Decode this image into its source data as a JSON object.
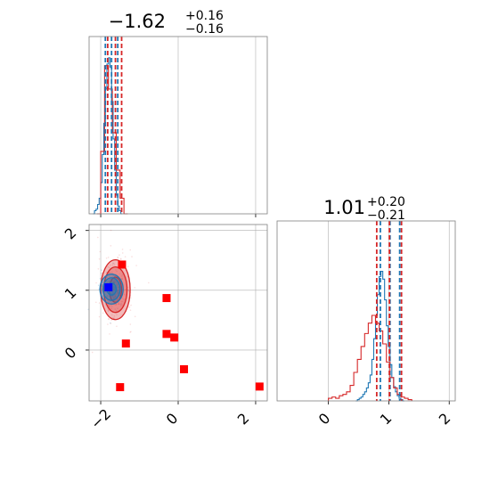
{
  "colors": {
    "blue": "#1f77b4",
    "red": "#d62728",
    "marker_red": "#ff0000",
    "marker_blue": "#0000ff",
    "grid": "#b0b0b0",
    "frame": "#808080"
  },
  "chart_data": {
    "type": "corner",
    "parameters": [
      {
        "title_value": "−1.62",
        "title_upper": "+0.16",
        "title_lower": "−0.16",
        "range": [
          -2.3,
          2.3
        ],
        "ticks": [
          -2,
          0,
          2
        ],
        "tick_labels": [
          "−2",
          "0",
          "2"
        ],
        "hist_blue": {
          "start": -2.2,
          "step": 0.04,
          "counts": [
            0.0,
            0.02,
            0.03,
            0.06,
            0.1,
            0.2,
            0.38,
            0.58,
            0.8,
            0.96,
            1.0,
            0.94,
            0.72,
            0.48,
            0.28,
            0.12,
            0.05,
            0.02,
            0.0
          ]
        },
        "hist_red": {
          "start": -2.1,
          "step": 0.1,
          "counts": [
            0.0,
            0.4,
            0.95,
            0.8,
            0.52,
            0.28,
            0.1,
            0.0
          ]
        },
        "quantiles_blue": [
          -1.88,
          -1.72,
          -1.56
        ],
        "quantiles_red": [
          -1.82,
          -1.62,
          -1.46
        ]
      },
      {
        "title_value": "1.01",
        "title_upper": "+0.20",
        "title_lower": "−0.21",
        "range": [
          -0.85,
          2.1
        ],
        "ticks": [
          0,
          1,
          2
        ],
        "tick_labels": [
          "0",
          "1",
          "2"
        ],
        "hist_blue": {
          "start": 0.45,
          "step": 0.03,
          "counts": [
            0.0,
            0.01,
            0.02,
            0.03,
            0.05,
            0.07,
            0.1,
            0.14,
            0.2,
            0.32,
            0.48,
            0.66,
            0.82,
            0.96,
            1.0,
            0.94,
            0.78,
            0.58,
            0.42,
            0.28,
            0.18,
            0.11,
            0.07,
            0.04,
            0.02,
            0.01,
            0.0
          ]
        },
        "hist_red": {
          "start": 0.0,
          "step": 0.06,
          "counts": [
            0.02,
            0.03,
            0.02,
            0.04,
            0.05,
            0.07,
            0.12,
            0.22,
            0.32,
            0.42,
            0.52,
            0.6,
            0.66,
            0.6,
            0.54,
            0.44,
            0.3,
            0.18,
            0.1,
            0.05,
            0.03,
            0.02,
            0.01
          ]
        },
        "quantiles_blue": [
          0.86,
          1.02,
          1.18
        ],
        "quantiles_red": [
          0.8,
          1.01,
          1.21
        ]
      }
    ],
    "scatter_2d": {
      "blue_center": [
        -1.72,
        1.02
      ],
      "blue_contour_radii": [
        [
          0.12,
          0.1
        ],
        [
          0.22,
          0.19
        ],
        [
          0.3,
          0.25
        ]
      ],
      "red_center": [
        -1.62,
        1.01
      ],
      "red_contour_radii": [
        [
          0.16,
          0.21
        ],
        [
          0.3,
          0.38
        ],
        [
          0.38,
          0.5
        ]
      ],
      "red_markers": [
        [
          -1.45,
          1.43
        ],
        [
          -0.3,
          0.87
        ],
        [
          -1.35,
          0.11
        ],
        [
          -0.3,
          0.27
        ],
        [
          -0.1,
          0.21
        ],
        [
          0.15,
          -0.32
        ],
        [
          -1.5,
          -0.62
        ],
        [
          2.1,
          -0.61
        ]
      ],
      "blue_marker": [
        -1.8,
        1.05
      ]
    }
  }
}
